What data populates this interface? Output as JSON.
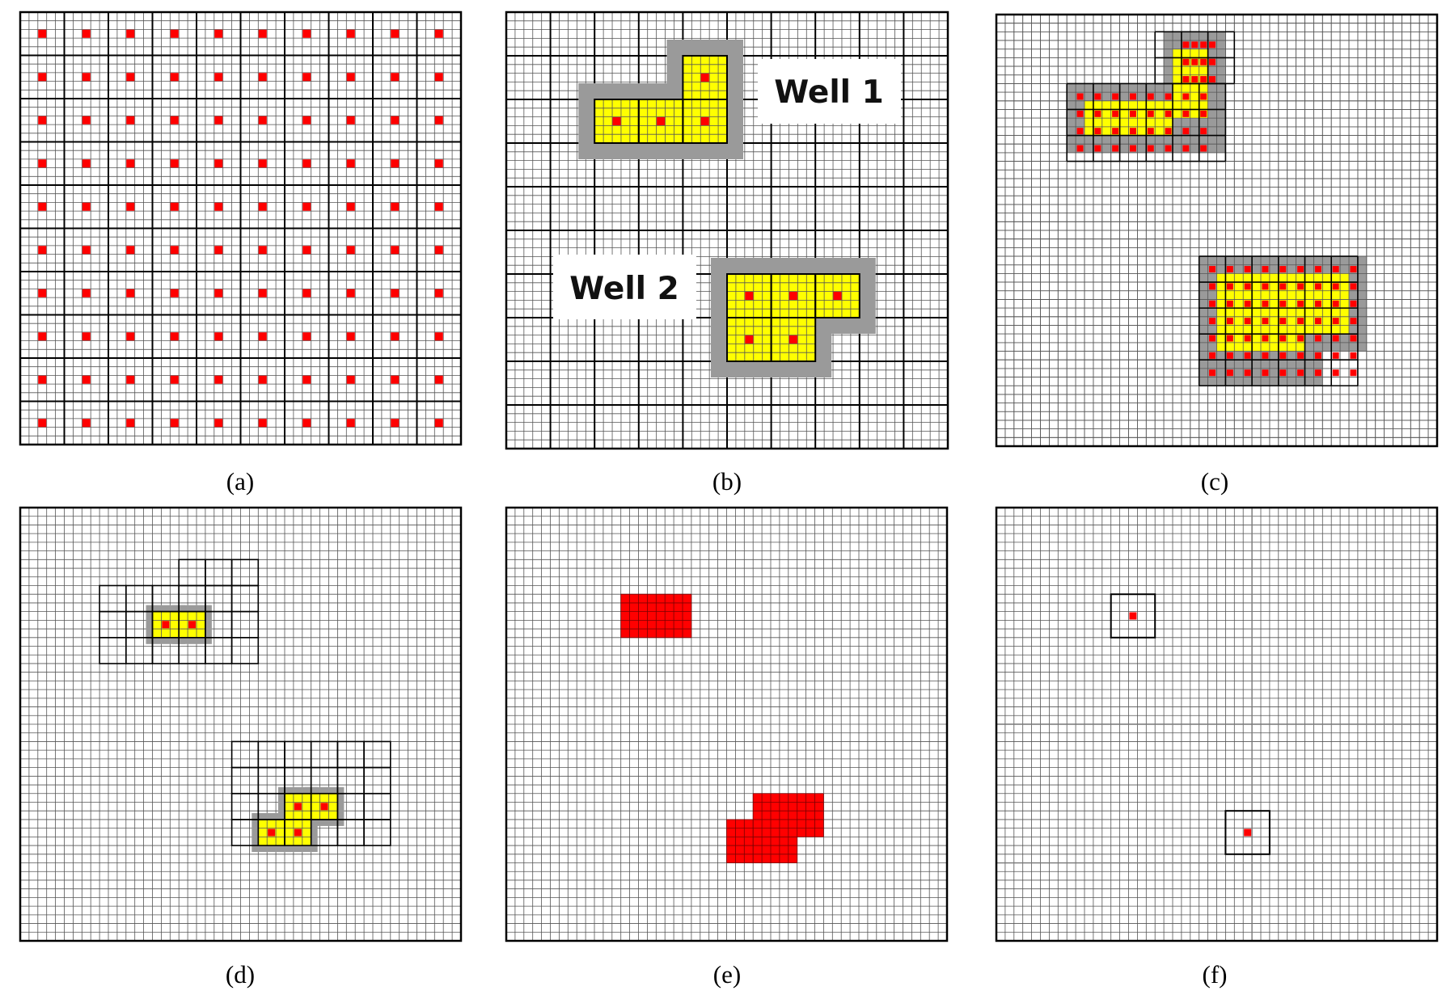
{
  "figure": {
    "panels": [
      {
        "id": "a",
        "caption": "(a)",
        "fine_cells": 50,
        "coarse_grid": {
          "cols": 10,
          "rows": 10,
          "last_row_fine": 4
        },
        "markers": "every-coarse-cell-center"
      },
      {
        "id": "b",
        "caption": "(b)",
        "fine_cells": 50,
        "coarse_grid": {
          "cols": 10,
          "rows": 10,
          "last_row_fine": 4
        },
        "wells": [
          {
            "name": "Well 1",
            "label": "Well 1",
            "coarse_cells": [
              [
                4,
                1
              ],
              [
                2,
                2
              ],
              [
                3,
                2
              ],
              [
                4,
                2
              ]
            ]
          },
          {
            "name": "Well 2",
            "label": "Well 2",
            "coarse_cells": [
              [
                5,
                6
              ],
              [
                6,
                6
              ],
              [
                7,
                6
              ],
              [
                5,
                7
              ],
              [
                6,
                7
              ]
            ]
          }
        ]
      },
      {
        "id": "c",
        "caption": "(c)",
        "fine_cells": 50,
        "boxes": [
          {
            "col": 8,
            "row": 2,
            "cols": 9,
            "rows": 15
          },
          {
            "col": 23,
            "row": 28,
            "cols": 19,
            "rows": 15
          }
        ]
      },
      {
        "id": "d",
        "caption": "(d)",
        "fine_cells": 50,
        "coarse_cells": [
          [
            6,
            2
          ],
          [
            7,
            2
          ],
          [
            8,
            2
          ],
          [
            3,
            3
          ],
          [
            4,
            3
          ],
          [
            5,
            3
          ],
          [
            6,
            3
          ],
          [
            7,
            3
          ],
          [
            8,
            3
          ],
          [
            3,
            4
          ],
          [
            4,
            4
          ],
          [
            5,
            4
          ],
          [
            6,
            4
          ],
          [
            7,
            4
          ],
          [
            8,
            4
          ],
          [
            3,
            5
          ],
          [
            4,
            5
          ],
          [
            5,
            5
          ],
          [
            6,
            5
          ],
          [
            7,
            5
          ],
          [
            8,
            5
          ],
          [
            8,
            9
          ],
          [
            9,
            9
          ],
          [
            10,
            9
          ],
          [
            11,
            9
          ],
          [
            12,
            9
          ],
          [
            13,
            9
          ],
          [
            8,
            10
          ],
          [
            9,
            10
          ],
          [
            10,
            10
          ],
          [
            11,
            10
          ],
          [
            12,
            10
          ],
          [
            13,
            10
          ],
          [
            8,
            11
          ],
          [
            9,
            11
          ],
          [
            10,
            11
          ],
          [
            11,
            11
          ],
          [
            12,
            11
          ],
          [
            13,
            11
          ],
          [
            8,
            12
          ],
          [
            9,
            12
          ],
          [
            10,
            12
          ],
          [
            11,
            12
          ],
          [
            12,
            12
          ],
          [
            13,
            12
          ]
        ],
        "refined_coarse_cells": [
          [
            5,
            4
          ],
          [
            6,
            4
          ],
          [
            10,
            11
          ],
          [
            11,
            11
          ],
          [
            9,
            12
          ],
          [
            10,
            12
          ]
        ]
      },
      {
        "id": "e",
        "caption": "(e)",
        "fine_cells": 50,
        "red_fine_cell_rects": [
          {
            "col": 13,
            "row": 10,
            "cols": 8,
            "rows": 5
          },
          {
            "col": 28,
            "row": 33,
            "cols": 8,
            "rows": 5
          },
          {
            "col": 25,
            "row": 36,
            "cols": 3,
            "rows": 5
          },
          {
            "col": 28,
            "row": 38,
            "cols": 5,
            "rows": 3
          }
        ]
      },
      {
        "id": "f",
        "caption": "(f)",
        "fine_cells": 50,
        "coarse_lines": {
          "vertical": [
            29
          ],
          "horizontal": [
            25,
            41
          ]
        },
        "boxes": [
          {
            "col": 13,
            "row": 10,
            "size": 5
          },
          {
            "col": 26,
            "row": 35,
            "size": 5
          }
        ]
      }
    ]
  },
  "colors": {
    "fine_grid": "#555555",
    "coarse_grid": "#000000",
    "marker": "#ff0000",
    "well_fill": "#ffff00",
    "halo": "#9a9a9a",
    "label_bg": "#ffffff"
  }
}
